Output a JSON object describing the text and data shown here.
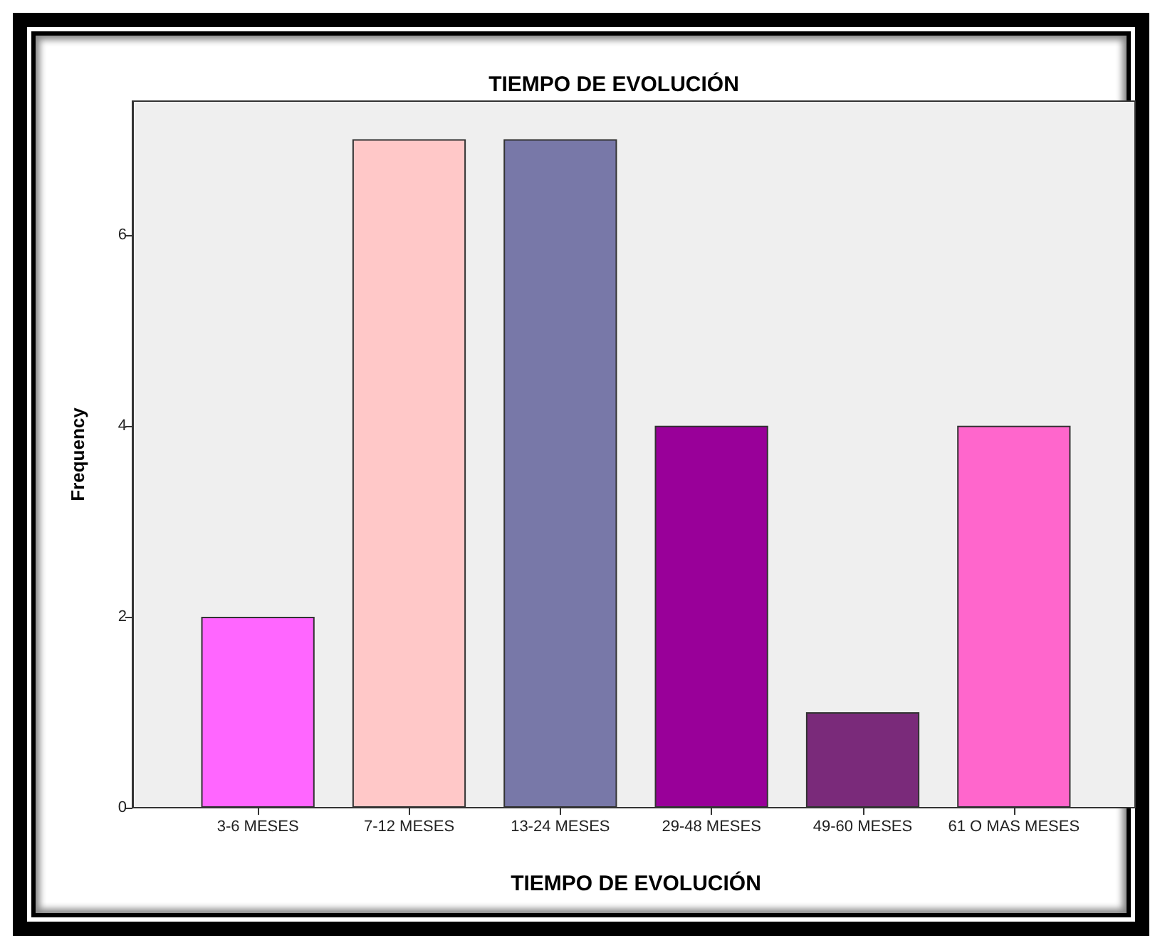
{
  "chart_data": {
    "type": "bar",
    "title": "TIEMPO DE EVOLUCIÓN",
    "xlabel": "TIEMPO DE EVOLUCIÓN",
    "ylabel": "Frequency",
    "categories": [
      "3-6 MESES",
      "7-12 MESES",
      "13-24 MESES",
      "29-48 MESES",
      "49-60 MESES",
      "61 O MAS MESES"
    ],
    "values": [
      2,
      7,
      7,
      4,
      1,
      4
    ],
    "colors": [
      "#ff66ff",
      "#ffc8c8",
      "#7878a8",
      "#990099",
      "#7a2a7a",
      "#ff66cc"
    ],
    "ylim": [
      0,
      7.4
    ],
    "yticks": [
      0,
      2,
      4,
      6
    ]
  }
}
